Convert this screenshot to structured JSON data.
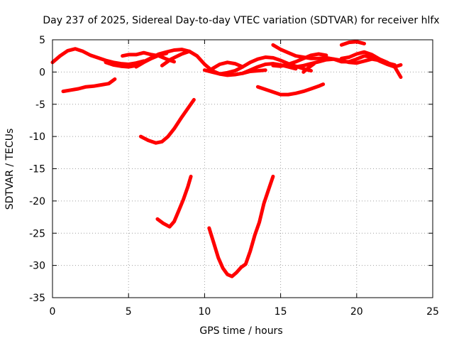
{
  "chart_data": {
    "type": "line",
    "title": "Day 237 of 2025, Sidereal Day-to-day VTEC variation (SDTVAR) for receiver hlfx",
    "xlabel": "GPS time / hours",
    "ylabel": "SDTVAR / TECUs",
    "xlim": [
      0,
      25
    ],
    "ylim": [
      -35,
      5
    ],
    "xticks": [
      "0",
      "5",
      "10",
      "15",
      "20",
      "25"
    ],
    "yticks": [
      "5",
      "0",
      "-5",
      "-10",
      "-15",
      "-20",
      "-25",
      "-30",
      "-35"
    ],
    "grid": true,
    "color": "#ff0000",
    "series": [
      {
        "x": [
          0.0,
          0.5,
          1.0,
          1.5,
          2.0,
          2.5,
          3.0,
          3.5,
          4.0,
          4.5,
          5.0,
          5.5,
          6.0
        ],
        "y": [
          1.5,
          2.5,
          3.3,
          3.6,
          3.2,
          2.6,
          2.2,
          1.8,
          1.5,
          1.3,
          1.2,
          1.4,
          1.7
        ]
      },
      {
        "x": [
          3.5,
          4.0,
          4.5,
          5.0,
          5.5,
          6.0,
          6.5,
          7.0,
          7.5,
          8.0,
          8.5,
          9.0,
          9.5,
          10.0,
          10.5,
          11.0,
          11.5,
          12.0,
          12.5,
          13.0,
          13.5,
          14.0
        ],
        "y": [
          1.5,
          1.1,
          0.9,
          0.8,
          1.0,
          1.6,
          2.2,
          2.8,
          3.1,
          3.4,
          3.5,
          3.2,
          2.5,
          1.2,
          0.2,
          -0.3,
          -0.5,
          -0.4,
          -0.2,
          0.1,
          0.2,
          0.3
        ]
      },
      {
        "x": [
          4.6,
          5.0,
          5.5,
          6.0,
          6.5,
          7.0,
          7.5,
          8.0
        ],
        "y": [
          2.5,
          2.7,
          2.7,
          3.0,
          2.7,
          2.5,
          2.0,
          1.6
        ]
      },
      {
        "x": [
          5.5,
          6.0,
          6.5,
          7.0,
          7.5
        ],
        "y": [
          0.8,
          1.5,
          2.1,
          2.6,
          2.9
        ]
      },
      {
        "x": [
          7.2,
          7.8,
          8.5,
          9.0
        ],
        "y": [
          1.0,
          2.0,
          2.8,
          3.2
        ]
      },
      {
        "x": [
          10.5,
          11.0,
          11.5,
          12.0,
          12.5
        ],
        "y": [
          0.5,
          1.2,
          1.5,
          1.3,
          0.8
        ]
      },
      {
        "x": [
          10.0,
          10.5,
          11.0,
          11.5,
          12.0,
          12.5,
          13.0,
          13.5,
          14.0,
          14.5,
          15.0,
          15.5,
          16.0,
          16.5,
          17.0
        ],
        "y": [
          0.3,
          0.0,
          -0.3,
          -0.1,
          0.2,
          0.8,
          1.5,
          2.0,
          2.3,
          2.2,
          1.8,
          1.3,
          0.9,
          0.5,
          0.2
        ]
      },
      {
        "x": [
          12.5,
          13.0,
          13.5,
          14.0,
          14.5,
          15.0,
          15.5,
          16.0
        ],
        "y": [
          -0.2,
          0.3,
          0.8,
          1.2,
          1.3,
          1.1,
          0.8,
          0.5
        ]
      },
      {
        "x": [
          14.5,
          15.0,
          15.5,
          16.0,
          16.5,
          17.0,
          17.5,
          18.0
        ],
        "y": [
          1.0,
          0.9,
          1.2,
          1.6,
          2.1,
          2.6,
          2.8,
          2.6
        ]
      },
      {
        "x": [
          14.5,
          15.0,
          15.5,
          16.0,
          16.5,
          17.0,
          17.5,
          18.0,
          18.5,
          19.0,
          19.5,
          20.0,
          20.5,
          21.0,
          21.5,
          22.0,
          22.5,
          22.9
        ],
        "y": [
          4.2,
          3.5,
          3.0,
          2.5,
          2.3,
          2.1,
          2.1,
          2.2,
          2.0,
          1.6,
          1.6,
          2.0,
          2.5,
          2.3,
          1.7,
          1.2,
          0.8,
          1.1
        ]
      },
      {
        "x": [
          16.0,
          16.5,
          17.0,
          17.5,
          18.0,
          18.5,
          19.0,
          19.5,
          20.0,
          20.5,
          21.0,
          21.5,
          22.0,
          22.5
        ],
        "y": [
          0.8,
          1.0,
          1.3,
          1.6,
          1.9,
          2.0,
          1.8,
          1.5,
          1.4,
          1.7,
          2.0,
          1.8,
          1.4,
          1.1
        ]
      },
      {
        "x": [
          19.0,
          19.5,
          20.0,
          20.5,
          21.0,
          21.5,
          22.0,
          22.5,
          22.9
        ],
        "y": [
          2.1,
          2.3,
          2.8,
          3.1,
          2.7,
          2.0,
          1.5,
          0.8,
          -0.8
        ]
      },
      {
        "x": [
          19.0,
          19.5,
          20.0,
          20.5
        ],
        "y": [
          4.2,
          4.6,
          4.7,
          4.4
        ]
      },
      {
        "x": [
          16.5,
          16.8,
          17.2
        ],
        "y": [
          0.0,
          0.6,
          1.3
        ]
      },
      {
        "x": [
          0.7,
          1.2,
          1.7,
          2.2,
          2.7,
          3.2,
          3.7,
          4.1
        ],
        "y": [
          -3.0,
          -2.8,
          -2.6,
          -2.3,
          -2.2,
          -2.0,
          -1.8,
          -1.1
        ]
      },
      {
        "x": [
          13.5,
          14.0,
          14.5,
          15.0,
          15.5,
          16.0,
          16.5,
          17.0,
          17.5,
          17.8
        ],
        "y": [
          -2.3,
          -2.7,
          -3.1,
          -3.5,
          -3.5,
          -3.3,
          -3.0,
          -2.6,
          -2.2,
          -1.9
        ]
      },
      {
        "x": [
          5.8,
          6.3,
          6.8,
          7.2,
          7.6,
          8.0,
          8.5,
          9.0,
          9.3
        ],
        "y": [
          -10.0,
          -10.6,
          -11.0,
          -10.8,
          -10.0,
          -8.8,
          -7.0,
          -5.3,
          -4.3
        ]
      },
      {
        "x": [
          6.9,
          7.3,
          7.7,
          8.0,
          8.3,
          8.6,
          8.9,
          9.1
        ],
        "y": [
          -22.8,
          -23.5,
          -24.0,
          -23.2,
          -21.5,
          -19.8,
          -17.8,
          -16.2
        ]
      },
      {
        "x": [
          10.3,
          10.6,
          10.9,
          11.2,
          11.5,
          11.8,
          12.1,
          12.4,
          12.7,
          13.0,
          13.3,
          13.6,
          13.9,
          14.2,
          14.5
        ],
        "y": [
          -24.2,
          -26.5,
          -28.8,
          -30.4,
          -31.4,
          -31.7,
          -31.1,
          -30.3,
          -29.8,
          -27.8,
          -25.3,
          -23.3,
          -20.4,
          -18.3,
          -16.2
        ]
      }
    ]
  }
}
